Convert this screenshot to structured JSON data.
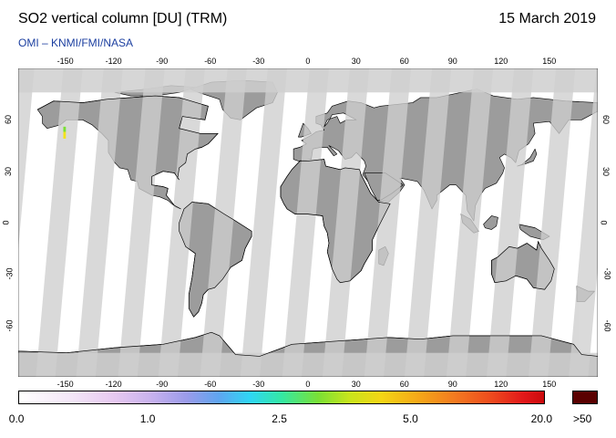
{
  "header": {
    "title": "SO2 vertical column [DU] (TRM)",
    "date": "15 March 2019",
    "credit": "OMI  –  KNMI/FMI/NASA"
  },
  "map": {
    "projection": "equirectangular",
    "lon_ticks": [
      "-150",
      "-120",
      "-90",
      "-60",
      "-30",
      "0",
      "30",
      "60",
      "90",
      "120",
      "150"
    ],
    "lat_ticks": [
      "60",
      "30",
      "0",
      "-30",
      "-60"
    ],
    "colors": {
      "ocean_no_data": "#ffffff",
      "land": "#9c9c9c",
      "swath_gap": "#cfcfcf",
      "coastline": "#000000"
    },
    "hotspot": {
      "lon": -151,
      "lat": 52,
      "note_color": "#f2e21b"
    }
  },
  "colorbar": {
    "labels": [
      "0.0",
      "1.0",
      "2.5",
      "5.0",
      "20.0"
    ],
    "overflow_label": ">50",
    "overflow_color": "#5a0000",
    "stops": [
      "#ffffff",
      "#e7c9f1",
      "#9a9bea",
      "#2fd6f4",
      "#7ae035",
      "#f4d515",
      "#f37a20",
      "#cc0a0c"
    ]
  }
}
